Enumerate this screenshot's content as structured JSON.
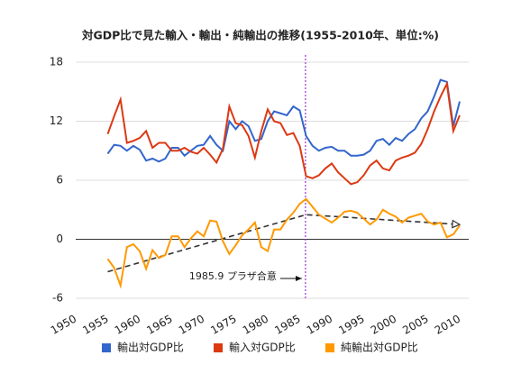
{
  "chart_data": {
    "type": "line",
    "title": "対GDP比で見た輸入・輸出・純輸出の推移(1955-2010年、単位:%)",
    "x": [
      1955,
      1956,
      1957,
      1958,
      1959,
      1960,
      1961,
      1962,
      1963,
      1964,
      1965,
      1966,
      1967,
      1968,
      1969,
      1970,
      1971,
      1972,
      1973,
      1974,
      1975,
      1976,
      1977,
      1978,
      1979,
      1980,
      1981,
      1982,
      1983,
      1984,
      1985,
      1986,
      1987,
      1988,
      1989,
      1990,
      1991,
      1992,
      1993,
      1994,
      1995,
      1996,
      1997,
      1998,
      1999,
      2000,
      2001,
      2002,
      2003,
      2004,
      2005,
      2006,
      2007,
      2008,
      2009,
      2010
    ],
    "series": [
      {
        "name": "輸出対GDP比",
        "color": "#3366cc",
        "values": [
          8.7,
          9.6,
          9.5,
          9.0,
          9.5,
          9.1,
          8.0,
          8.2,
          7.9,
          8.2,
          9.3,
          9.3,
          8.5,
          9.0,
          9.5,
          9.6,
          10.5,
          9.6,
          9.0,
          12.0,
          11.2,
          12.0,
          11.5,
          10.0,
          10.2,
          12.0,
          13.0,
          12.8,
          12.6,
          13.5,
          13.1,
          10.5,
          9.5,
          9.0,
          9.3,
          9.4,
          9.0,
          9.0,
          8.5,
          8.5,
          8.6,
          9.0,
          10.0,
          10.2,
          9.6,
          10.3,
          10.0,
          10.7,
          11.2,
          12.3,
          13.0,
          14.5,
          16.2,
          16.0,
          11.5,
          14.0
        ]
      },
      {
        "name": "輸入対GDP比",
        "color": "#dc3912",
        "values": [
          10.7,
          12.5,
          14.2,
          9.8,
          10.0,
          10.3,
          11.0,
          9.3,
          9.8,
          9.8,
          9.0,
          9.0,
          9.3,
          8.9,
          8.7,
          9.3,
          8.6,
          7.8,
          9.2,
          13.5,
          11.8,
          11.6,
          10.5,
          8.3,
          11.0,
          13.2,
          12.0,
          11.8,
          10.6,
          10.8,
          9.5,
          6.4,
          6.2,
          6.5,
          7.2,
          7.7,
          6.8,
          6.2,
          5.6,
          5.8,
          6.5,
          7.5,
          8.0,
          7.2,
          7.0,
          8.0,
          8.3,
          8.5,
          8.8,
          9.7,
          11.2,
          13.0,
          14.5,
          15.8,
          11.0,
          12.6
        ]
      },
      {
        "name": "純輸出対GDP比",
        "color": "#ff9900",
        "values": [
          -2.0,
          -2.9,
          -4.7,
          -0.8,
          -0.5,
          -1.2,
          -3.0,
          -1.1,
          -1.9,
          -1.6,
          0.3,
          0.3,
          -0.8,
          0.1,
          0.8,
          0.3,
          1.9,
          1.8,
          -0.2,
          -1.5,
          -0.6,
          0.4,
          1.0,
          1.7,
          -0.8,
          -1.2,
          1.0,
          1.0,
          2.0,
          2.7,
          3.6,
          4.1,
          3.3,
          2.5,
          2.1,
          1.7,
          2.2,
          2.8,
          2.9,
          2.7,
          2.1,
          1.5,
          2.0,
          3.0,
          2.6,
          2.3,
          1.7,
          2.2,
          2.4,
          2.6,
          1.8,
          1.5,
          1.7,
          0.2,
          0.5,
          1.4
        ]
      }
    ],
    "xlim": [
      1950,
      2010
    ],
    "xticks": [
      1950,
      1955,
      1960,
      1965,
      1970,
      1975,
      1980,
      1985,
      1990,
      1995,
      2000,
      2005,
      2010
    ],
    "ylim": [
      -6,
      18
    ],
    "yticks": [
      -6,
      0,
      6,
      12,
      18
    ],
    "grid": true,
    "annotation": {
      "x": 1985.9,
      "label": "1985.9 プラザ合意",
      "color": "#cc0000",
      "line_color": "#9933cc"
    },
    "trend": {
      "x": [
        1955,
        1986,
        2010
      ],
      "y": [
        -3.3,
        2.5,
        1.5
      ]
    },
    "legend": "bottom"
  }
}
